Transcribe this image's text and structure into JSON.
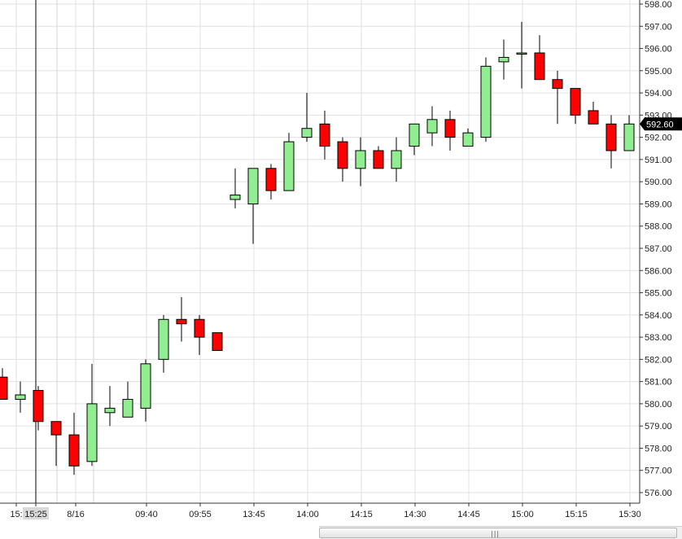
{
  "chart_data": {
    "type": "candlestick",
    "ylim": [
      575.5,
      598.2
    ],
    "y_ticks": [
      "576.00",
      "577.00",
      "578.00",
      "579.00",
      "580.00",
      "581.00",
      "582.00",
      "583.00",
      "584.00",
      "585.00",
      "586.00",
      "587.00",
      "588.00",
      "589.00",
      "590.00",
      "591.00",
      "592.00",
      "593.00",
      "594.00",
      "595.00",
      "596.00",
      "597.00",
      "598.00"
    ],
    "x_ticks": [
      "15:",
      "15:25",
      "8/16",
      "09:40",
      "09:55",
      "13:45",
      "14:00",
      "14:15",
      "14:30",
      "14:45",
      "15:00",
      "15:15",
      "15:30"
    ],
    "last_price": "592.60",
    "colors": {
      "up": "#90ee90",
      "down": "#ff0000",
      "outline": "#000000",
      "grid": "#e0e0e0"
    },
    "candles": [
      {
        "o": 581.2,
        "h": 581.6,
        "l": 580.2,
        "c": 580.2
      },
      {
        "o": 580.2,
        "h": 581.0,
        "l": 579.6,
        "c": 580.4
      },
      {
        "o": 580.6,
        "h": 580.8,
        "l": 578.8,
        "c": 579.2
      },
      {
        "o": 579.2,
        "h": 579.2,
        "l": 577.2,
        "c": 578.6
      },
      {
        "o": 578.6,
        "h": 579.6,
        "l": 576.8,
        "c": 577.2
      },
      {
        "o": 577.4,
        "h": 581.8,
        "l": 577.2,
        "c": 580.0
      },
      {
        "o": 579.6,
        "h": 580.8,
        "l": 579.0,
        "c": 579.8
      },
      {
        "o": 579.4,
        "h": 581.0,
        "l": 579.4,
        "c": 580.2
      },
      {
        "o": 579.8,
        "h": 582.0,
        "l": 579.2,
        "c": 581.8
      },
      {
        "o": 582.0,
        "h": 584.0,
        "l": 581.4,
        "c": 583.8
      },
      {
        "o": 583.8,
        "h": 584.8,
        "l": 582.8,
        "c": 583.6
      },
      {
        "o": 583.8,
        "h": 584.0,
        "l": 582.2,
        "c": 583.0
      },
      {
        "o": 583.2,
        "h": 583.2,
        "l": 582.4,
        "c": 582.4
      },
      {
        "o": 589.2,
        "h": 590.6,
        "l": 588.8,
        "c": 589.4
      },
      {
        "o": 589.0,
        "h": 590.6,
        "l": 587.2,
        "c": 590.6
      },
      {
        "o": 590.6,
        "h": 590.8,
        "l": 589.2,
        "c": 589.6
      },
      {
        "o": 589.6,
        "h": 592.2,
        "l": 589.6,
        "c": 591.8
      },
      {
        "o": 592.0,
        "h": 594.0,
        "l": 591.8,
        "c": 592.4
      },
      {
        "o": 592.6,
        "h": 593.2,
        "l": 591.0,
        "c": 591.6
      },
      {
        "o": 591.8,
        "h": 592.0,
        "l": 590.0,
        "c": 590.6
      },
      {
        "o": 590.6,
        "h": 592.0,
        "l": 589.8,
        "c": 591.4
      },
      {
        "o": 591.4,
        "h": 591.6,
        "l": 590.6,
        "c": 590.6
      },
      {
        "o": 590.6,
        "h": 592.0,
        "l": 590.0,
        "c": 591.4
      },
      {
        "o": 591.6,
        "h": 592.6,
        "l": 591.2,
        "c": 592.6
      },
      {
        "o": 592.2,
        "h": 593.4,
        "l": 591.6,
        "c": 592.8
      },
      {
        "o": 592.8,
        "h": 593.2,
        "l": 591.4,
        "c": 592.0
      },
      {
        "o": 591.6,
        "h": 592.4,
        "l": 591.6,
        "c": 592.2
      },
      {
        "o": 592.0,
        "h": 595.6,
        "l": 591.8,
        "c": 595.2
      },
      {
        "o": 595.4,
        "h": 596.4,
        "l": 594.6,
        "c": 595.6
      },
      {
        "o": 595.8,
        "h": 597.2,
        "l": 594.2,
        "c": 595.8
      },
      {
        "o": 595.8,
        "h": 596.6,
        "l": 594.6,
        "c": 594.6
      },
      {
        "o": 594.6,
        "h": 595.0,
        "l": 592.6,
        "c": 594.2
      },
      {
        "o": 594.2,
        "h": 594.2,
        "l": 592.6,
        "c": 593.0
      },
      {
        "o": 593.2,
        "h": 593.6,
        "l": 592.6,
        "c": 592.6
      },
      {
        "o": 592.6,
        "h": 593.0,
        "l": 590.6,
        "c": 591.4
      },
      {
        "o": 591.4,
        "h": 593.0,
        "l": 591.4,
        "c": 592.6
      }
    ]
  }
}
